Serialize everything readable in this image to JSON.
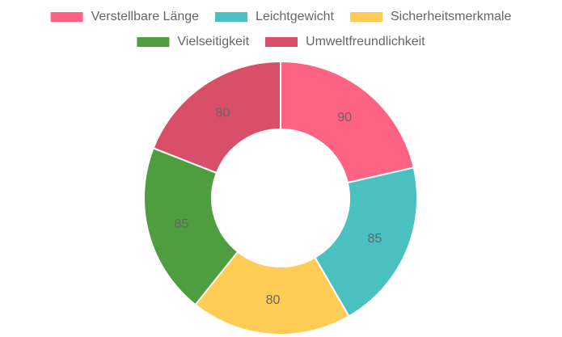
{
  "chart_data": {
    "type": "doughnut",
    "categories": [
      "Verstellbare Länge",
      "Leichtgewicht",
      "Sicherheitsmerkmale",
      "Vielseitigkeit",
      "Umweltfreundlichkeit"
    ],
    "values": [
      90,
      85,
      80,
      85,
      80
    ],
    "colors": [
      "#ff6384",
      "#4bc0c0",
      "#ffcd56",
      "#4e9d3e",
      "#d94f6a"
    ],
    "legend": "top"
  }
}
